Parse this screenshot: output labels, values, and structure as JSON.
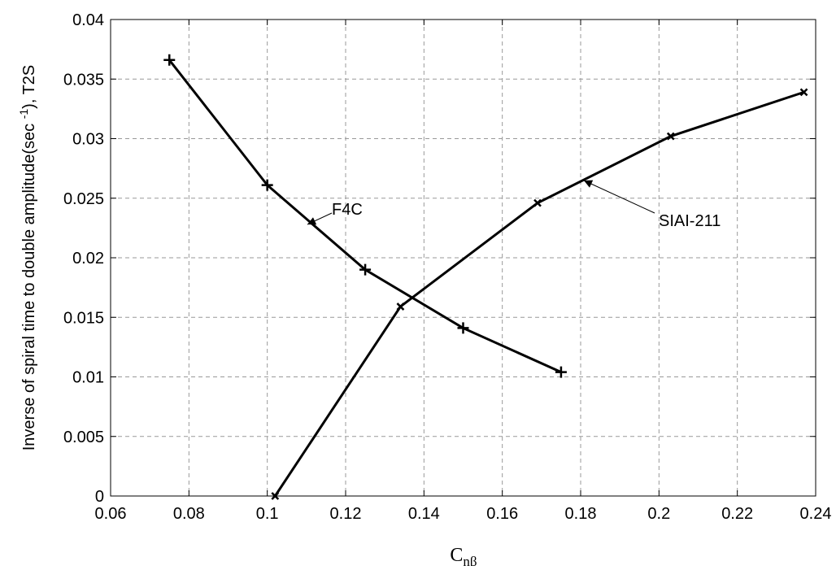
{
  "chart_data": {
    "type": "line",
    "xlabel": "C",
    "xlabel_sub": "nβ",
    "ylabel": "Inverse of spiral time to double amplitude(sec ",
    "ylabel_sup": "-1",
    "ylabel_end": "), T2S",
    "series": [
      {
        "name": "F4C",
        "color": "#000000",
        "marker": "plus",
        "x": [
          0.075,
          0.1,
          0.125,
          0.15,
          0.175
        ],
        "values": [
          0.0366,
          0.0261,
          0.019,
          0.0141,
          0.0104
        ]
      },
      {
        "name": "SIAI-211",
        "color": "#000000",
        "marker": "cross",
        "x": [
          0.102,
          0.134,
          0.169,
          0.203,
          0.237
        ],
        "values": [
          0.0,
          0.0159,
          0.0246,
          0.0302,
          0.0339
        ]
      }
    ],
    "xlim": [
      0.06,
      0.24
    ],
    "xticks": [
      0.06,
      0.08,
      0.1,
      0.12,
      0.14,
      0.16,
      0.18,
      0.2,
      0.22,
      0.24
    ],
    "ylim": [
      0,
      0.04
    ],
    "yticks": [
      0,
      0.005,
      0.01,
      0.015,
      0.02,
      0.025,
      0.03,
      0.035,
      0.04
    ],
    "grid": true
  }
}
